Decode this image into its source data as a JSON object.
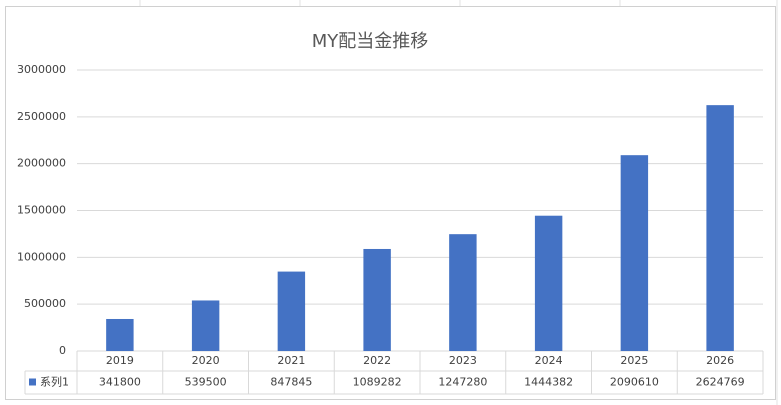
{
  "chart_data": {
    "type": "bar",
    "title": "MY配当金推移",
    "categories": [
      "2019",
      "2020",
      "2021",
      "2022",
      "2023",
      "2024",
      "2025",
      "2026"
    ],
    "series": [
      {
        "name": "系列1",
        "color": "#4472c4",
        "values": [
          341800,
          539500,
          847845,
          1089282,
          1247280,
          1444382,
          2090610,
          2624769
        ]
      }
    ],
    "ylim": [
      0,
      3000000
    ],
    "yticks": [
      0,
      500000,
      1000000,
      1500000,
      2000000,
      2500000,
      3000000
    ],
    "grid": true
  }
}
